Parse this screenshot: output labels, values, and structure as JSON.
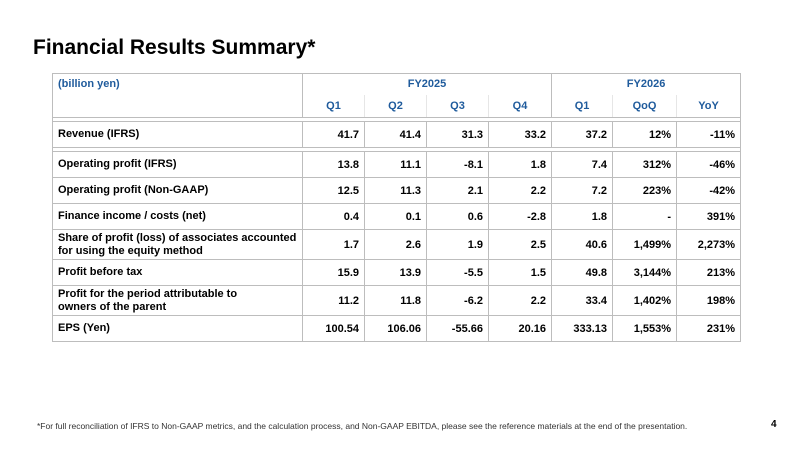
{
  "title": "Financial Results Summary*",
  "table": {
    "unit_label": "(billion yen)",
    "group_fy2025": "FY2025",
    "group_fy2026": "FY2026",
    "columns": [
      "Q1",
      "Q2",
      "Q3",
      "Q4",
      "Q1",
      "QoQ",
      "YoY"
    ],
    "rows": [
      {
        "label": "Revenue (IFRS)",
        "values": [
          "41.7",
          "41.4",
          "31.3",
          "33.2",
          "37.2",
          "12%",
          "-11%"
        ]
      },
      {
        "label": "Operating profit (IFRS)",
        "values": [
          "13.8",
          "11.1",
          "-8.1",
          "1.8",
          "7.4",
          "312%",
          "-46%"
        ]
      },
      {
        "label": "Operating profit (Non-GAAP)",
        "values": [
          "12.5",
          "11.3",
          "2.1",
          "2.2",
          "7.2",
          "223%",
          "-42%"
        ]
      },
      {
        "label": "Finance income / costs (net)",
        "values": [
          "0.4",
          "0.1",
          "0.6",
          "-2.8",
          "1.8",
          "-",
          "391%"
        ]
      },
      {
        "label_line1": "Share of profit (loss) of associates accounted",
        "label_line2": "for using the equity method",
        "values": [
          "1.7",
          "2.6",
          "1.9",
          "2.5",
          "40.6",
          "1,499%",
          "2,273%"
        ]
      },
      {
        "label": "Profit before tax",
        "values": [
          "15.9",
          "13.9",
          "-5.5",
          "1.5",
          "49.8",
          "3,144%",
          "213%"
        ]
      },
      {
        "label_line1": "Profit for the period attributable to",
        "label_line2": "owners of the parent",
        "values": [
          "11.2",
          "11.8",
          "-6.2",
          "2.2",
          "33.4",
          "1,402%",
          "198%"
        ]
      },
      {
        "label": "EPS (Yen)",
        "values": [
          "100.54",
          "106.06",
          "-55.66",
          "20.16",
          "333.13",
          "1,553%",
          "231%"
        ]
      }
    ]
  },
  "footnote": "*For full reconciliation of IFRS to Non-GAAP metrics, and the calculation process, and Non-GAAP EBITDA, please see the reference materials at the end of the presentation.",
  "page_number": "4",
  "colors": {
    "header_text": "#1f5b9c",
    "border": "#bdbdbd"
  }
}
